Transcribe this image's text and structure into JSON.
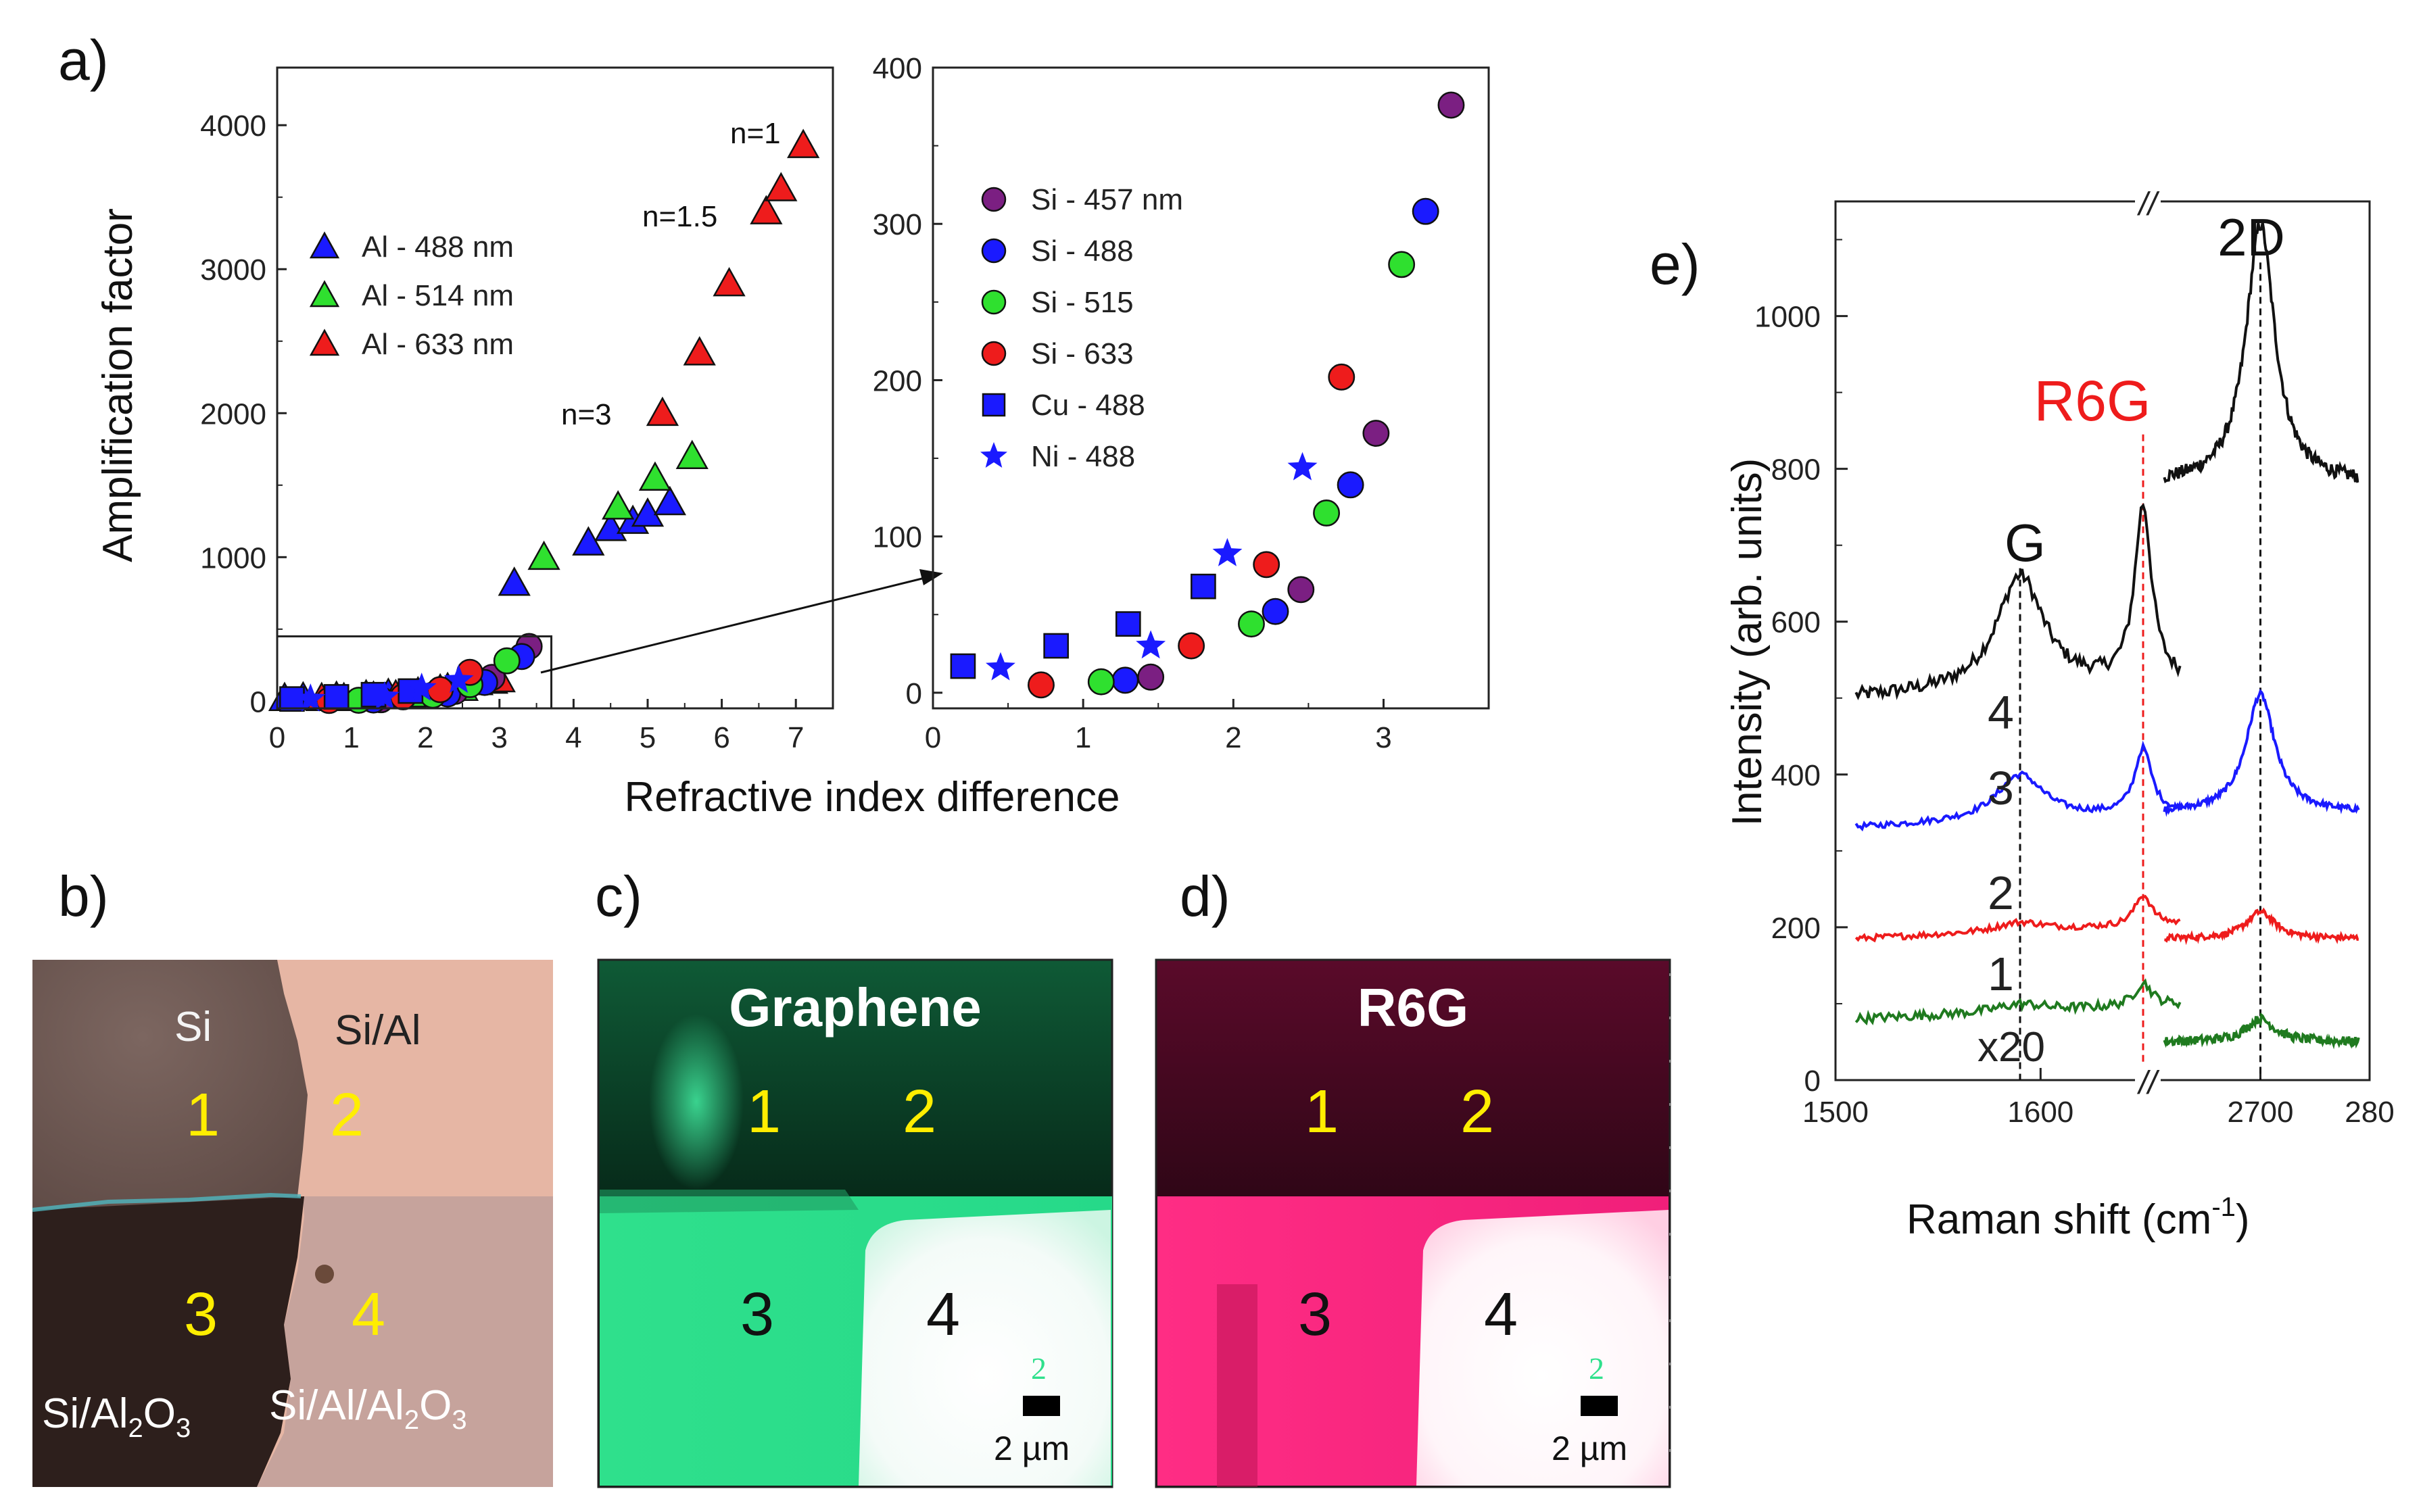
{
  "colors": {
    "purple": "#7b1f82",
    "blue": "#1a1aff",
    "green": "#2fe02f",
    "red": "#ee1c1c",
    "graphene_green": "#21e08a",
    "r6g_pink": "#ff1f7a",
    "trace_black": "#111111",
    "trace_blue": "#1a1aff",
    "trace_red": "#ee1c1c",
    "trace_green": "#1f7a1f"
  },
  "panels": {
    "a_label": "a)",
    "b_label": "b)",
    "c_label": "c)",
    "d_label": "d)",
    "e_label": "e)"
  },
  "chart_data": [
    {
      "id": "a-left",
      "type": "scatter",
      "title": "",
      "xlabel": "Refractive index difference",
      "ylabel": "Amplification factor",
      "xlim": [
        0,
        7.5
      ],
      "ylim": [
        -50,
        4400
      ],
      "xticks": [
        "0",
        "1",
        "2",
        "3",
        "4",
        "5",
        "6",
        "7"
      ],
      "yticks": [
        "0",
        "1000",
        "2000",
        "3000",
        "4000"
      ],
      "legend": {
        "placement": "upper-left"
      },
      "annotations": [
        "n=1",
        "n=1.5",
        "n=3"
      ],
      "series": [
        {
          "name": "Al - 488 nm",
          "marker": "triangle",
          "color": "blue",
          "x": [
            0.1,
            0.35,
            0.8,
            1.2,
            1.5,
            1.9,
            2.3,
            2.7,
            3.2,
            4.2,
            4.5,
            4.8,
            5.0,
            5.3
          ],
          "y": [
            20,
            25,
            30,
            40,
            50,
            60,
            90,
            130,
            820,
            1100,
            1200,
            1250,
            1300,
            1380
          ]
        },
        {
          "name": "Al - 514 nm",
          "marker": "triangle",
          "color": "green",
          "x": [
            0.9,
            1.3,
            1.8,
            2.5,
            2.9,
            3.6,
            4.6,
            5.1,
            5.6
          ],
          "y": [
            20,
            30,
            45,
            90,
            140,
            1000,
            1350,
            1550,
            1700
          ]
        },
        {
          "name": "Al - 633 nm",
          "marker": "triangle",
          "color": "red",
          "x": [
            0.6,
            1.6,
            2.2,
            3.0,
            5.2,
            5.7,
            6.1,
            6.6,
            6.8,
            7.1
          ],
          "y": [
            20,
            40,
            80,
            150,
            2000,
            2420,
            2900,
            3400,
            3560,
            3860
          ]
        },
        {
          "name": "Si - 457 nm",
          "marker": "circle",
          "color": "purple",
          "inLegend": false,
          "x": [
            1.4,
            2.4,
            2.9,
            3.4
          ],
          "y": [
            10,
            68,
            165,
            380
          ]
        },
        {
          "name": "Si - 488",
          "marker": "circle",
          "color": "blue",
          "inLegend": false,
          "x": [
            1.3,
            2.3,
            2.8,
            3.3
          ],
          "y": [
            8,
            50,
            130,
            310
          ]
        },
        {
          "name": "Si - 515",
          "marker": "circle",
          "color": "green",
          "inLegend": false,
          "x": [
            1.1,
            2.1,
            2.6,
            3.1
          ],
          "y": [
            6,
            42,
            115,
            280
          ]
        },
        {
          "name": "Si - 633",
          "marker": "circle",
          "color": "red",
          "inLegend": false,
          "x": [
            0.7,
            1.7,
            2.2,
            2.6
          ],
          "y": [
            5,
            30,
            80,
            200
          ]
        },
        {
          "name": "Cu - 488",
          "marker": "square",
          "color": "blue",
          "inLegend": false,
          "x": [
            0.2,
            0.8,
            1.3,
            1.8
          ],
          "y": [
            15,
            30,
            45,
            70
          ]
        },
        {
          "name": "Ni - 488",
          "marker": "star",
          "color": "blue",
          "inLegend": false,
          "x": [
            0.45,
            1.45,
            1.95,
            2.45
          ],
          "y": [
            15,
            30,
            90,
            145
          ]
        }
      ],
      "inset_box": {
        "x": [
          0,
          3.7
        ],
        "y": [
          -50,
          450
        ]
      }
    },
    {
      "id": "a-right",
      "type": "scatter",
      "title": "",
      "xlabel": "Refractive index difference",
      "ylabel": "",
      "xlim": [
        0,
        3.7
      ],
      "ylim": [
        -10,
        400
      ],
      "xticks": [
        "0",
        "1",
        "2",
        "3"
      ],
      "yticks": [
        "0",
        "100",
        "200",
        "300",
        "400"
      ],
      "legend": {
        "placement": "upper-left"
      },
      "series": [
        {
          "name": "Si - 457 nm",
          "marker": "circle",
          "color": "purple",
          "x": [
            1.45,
            2.45,
            2.95,
            3.45
          ],
          "y": [
            10,
            66,
            166,
            376
          ]
        },
        {
          "name": "Si - 488",
          "marker": "circle",
          "color": "blue",
          "x": [
            1.28,
            2.28,
            2.78,
            3.28
          ],
          "y": [
            8,
            52,
            133,
            308
          ]
        },
        {
          "name": "Si - 515",
          "marker": "circle",
          "color": "green",
          "x": [
            1.12,
            2.12,
            2.62,
            3.12
          ],
          "y": [
            7,
            44,
            115,
            274
          ]
        },
        {
          "name": "Si - 633",
          "marker": "circle",
          "color": "red",
          "x": [
            0.72,
            1.72,
            2.22,
            2.72
          ],
          "y": [
            5,
            30,
            82,
            202
          ]
        },
        {
          "name": "Cu - 488",
          "marker": "square",
          "color": "blue",
          "x": [
            0.2,
            0.82,
            1.3,
            1.8
          ],
          "y": [
            17,
            30,
            44,
            68
          ]
        },
        {
          "name": "Ni - 488",
          "marker": "star",
          "color": "blue",
          "x": [
            0.45,
            1.45,
            1.96,
            2.46
          ],
          "y": [
            16,
            30,
            89,
            144
          ]
        }
      ]
    },
    {
      "id": "e",
      "type": "line",
      "title": "",
      "xlabel": "Raman shift (cm",
      "xlabel_sup": "-1",
      "xlabel_end": ")",
      "ylabel": "Intensity (arb. units)",
      "ylim": [
        0,
        1150
      ],
      "yticks": [
        "0",
        "200",
        "400",
        "600",
        "800",
        "1000"
      ],
      "segments": [
        {
          "name": "G region",
          "xlim": [
            1500,
            1650
          ],
          "xticks": [
            "1500",
            "1600"
          ]
        },
        {
          "name": "2D region",
          "xlim": [
            2600,
            2800
          ],
          "xticks": [
            "2700",
            "280"
          ]
        }
      ],
      "peaks": {
        "G": 1590,
        "R6G": 1650,
        "2D": 2700
      },
      "peak_labels": [
        "G",
        "R6G",
        "2D"
      ],
      "trace_labels": [
        "4",
        "3",
        "2",
        "1"
      ],
      "scale_note": "x20",
      "break_mark": "//",
      "series": [
        {
          "name": "4",
          "color": "trace_black",
          "offset": 500,
          "g_amp": 150,
          "r_amp": 230,
          "d_amp": 340,
          "d_base": 280,
          "noise": 18
        },
        {
          "name": "3",
          "color": "trace_blue",
          "offset": 330,
          "g_amp": 60,
          "r_amp": 85,
          "d_amp": 155,
          "d_base": 20,
          "noise": 8
        },
        {
          "name": "2",
          "color": "trace_red",
          "offset": 185,
          "g_amp": 12,
          "r_amp": 40,
          "d_amp": 35,
          "d_base": 0,
          "noise": 8
        },
        {
          "name": "1",
          "color": "trace_green",
          "offset": 80,
          "g_amp": 10,
          "r_amp": 30,
          "d_amp": 30,
          "d_base": -30,
          "noise": 12
        }
      ]
    }
  ],
  "panel_b": {
    "regions": [
      "Si",
      "Si/Al",
      "Si/Al2O3",
      "Si/Al/Al2O3"
    ],
    "label_si": "Si",
    "label_sial": "Si/Al",
    "label_sialo_prefix": "Si/Al",
    "label_sialo_sub2": "2",
    "label_sialo_o": "O",
    "label_sialo_sub3": "3",
    "label_sialalo_prefix": "Si/Al/Al",
    "label_sialalo_sub2": "2",
    "label_sialalo_o": "O",
    "label_sialalo_sub3": "3",
    "numbers": [
      "1",
      "2",
      "3",
      "4"
    ]
  },
  "panel_c": {
    "title": "Graphene",
    "numbers": [
      "1",
      "2",
      "3",
      "4"
    ],
    "tiny_mark": "2",
    "scalebar": "2 µm"
  },
  "panel_d": {
    "title": "R6G",
    "numbers": [
      "1",
      "2",
      "3",
      "4"
    ],
    "tiny_mark": "2",
    "scalebar": "2 µm"
  }
}
